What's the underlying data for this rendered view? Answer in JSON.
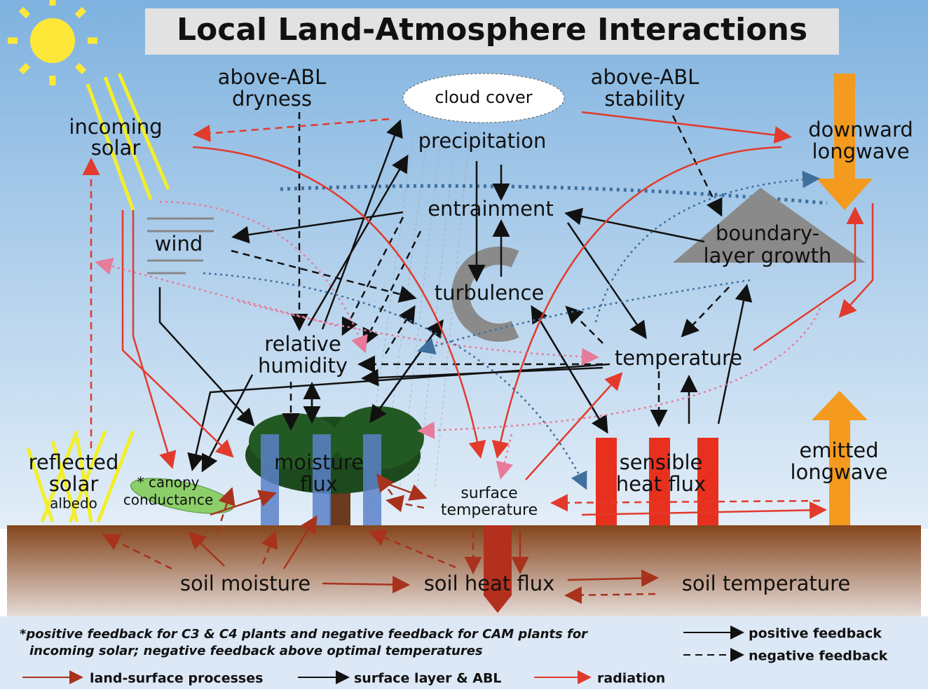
{
  "title": "Local Land-Atmosphere Interactions",
  "nodes": [
    {
      "label": [
        "above-ABL",
        "dryness"
      ]
    },
    {
      "label": [
        "cloud cover"
      ]
    },
    {
      "label": [
        "above-ABL",
        "stability"
      ]
    },
    {
      "label": [
        "incoming",
        "solar"
      ]
    },
    {
      "label": [
        "precipitation"
      ]
    },
    {
      "label": [
        "downward",
        "longwave"
      ]
    },
    {
      "label": [
        "entrainment"
      ]
    },
    {
      "label": [
        "wind"
      ]
    },
    {
      "label": [
        "boundary-",
        "layer growth"
      ]
    },
    {
      "label": [
        "turbulence"
      ]
    },
    {
      "label": [
        "relative",
        "humidity"
      ]
    },
    {
      "label": [
        "temperature"
      ]
    },
    {
      "label": [
        "reflected",
        "solar",
        "albedo"
      ]
    },
    {
      "label": [
        "moisture",
        "flux"
      ]
    },
    {
      "label": [
        "* canopy",
        "conductance"
      ]
    },
    {
      "label": [
        "sensible",
        "heat flux"
      ]
    },
    {
      "label": [
        "emitted",
        "longwave"
      ]
    },
    {
      "label": [
        "surface",
        "temperature"
      ]
    },
    {
      "label": [
        "soil moisture"
      ]
    },
    {
      "label": [
        "soil heat flux"
      ]
    },
    {
      "label": [
        "soil temperature"
      ]
    }
  ],
  "footnote": [
    "*positive feedback for C3 & C4 plants and negative feedback for CAM plants for",
    "incoming solar; negative feedback above optimal temperatures"
  ],
  "legend": {
    "positive": "positive feedback",
    "negative": "negative feedback",
    "land": "land-surface processes",
    "abl": "surface layer & ABL",
    "radiation": "radiation"
  }
}
